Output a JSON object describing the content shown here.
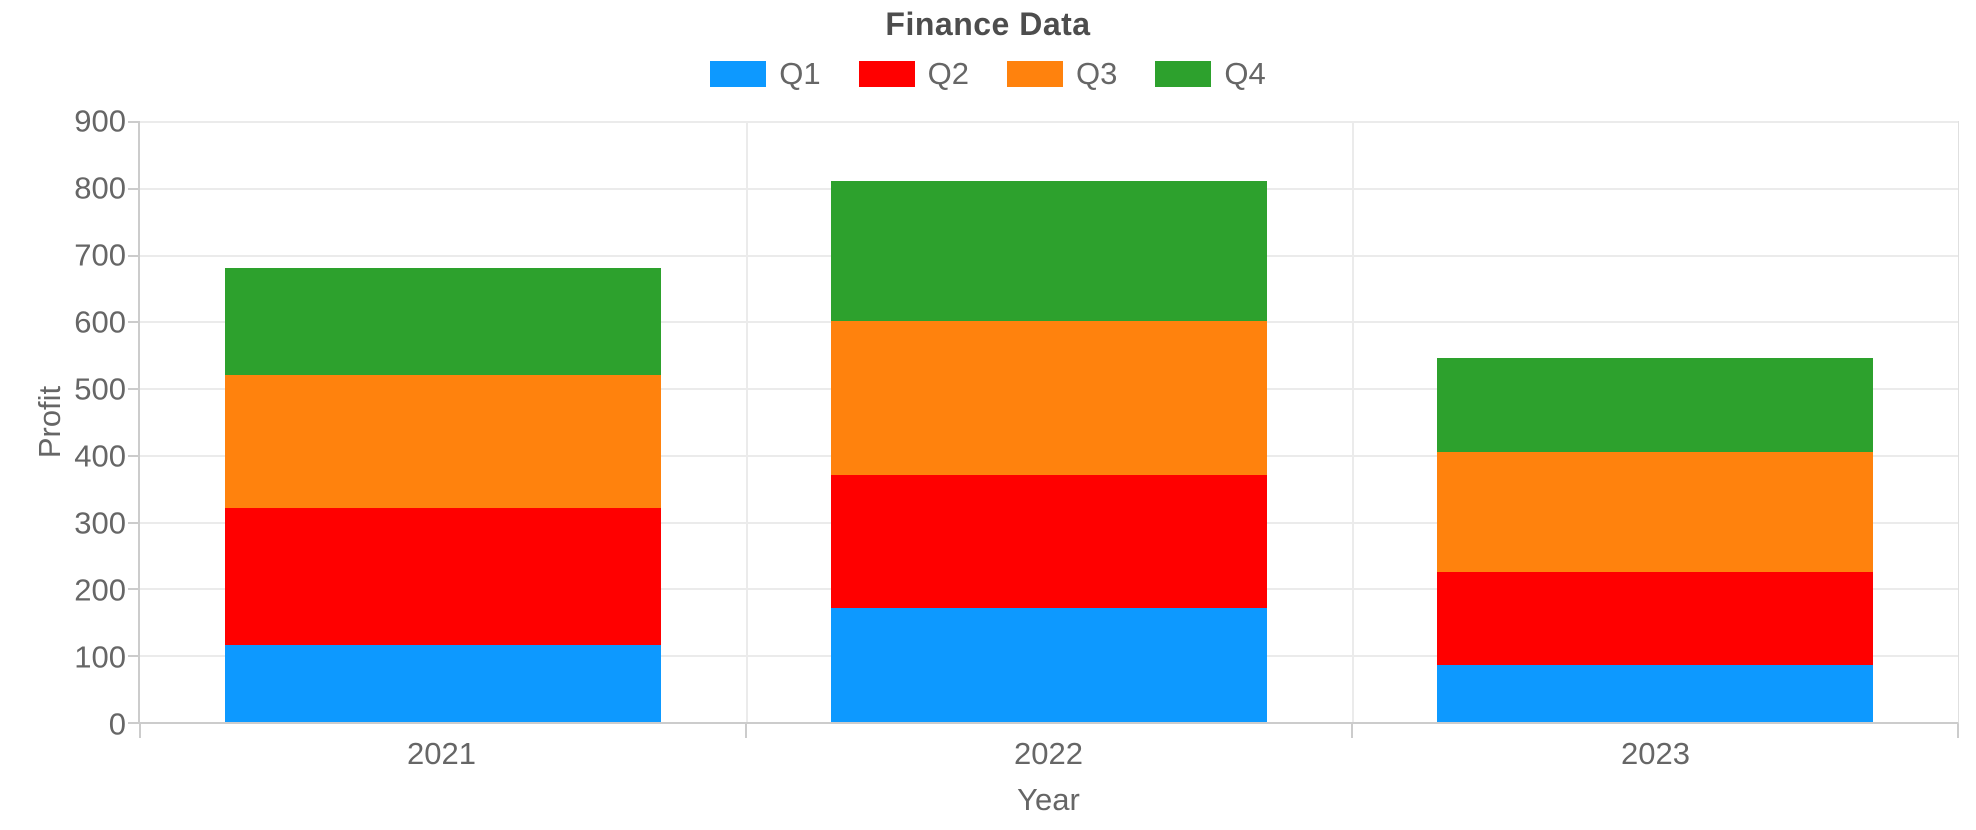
{
  "title": "Finance Data",
  "colors": {
    "q1_blue": "#0d99ff",
    "q2_red": "#ff0000",
    "q3_orange": "#ff820d",
    "q4_green": "#2da12d",
    "grid": "#ebebeb",
    "axis": "#cccccc",
    "text": "#666666",
    "title_text": "#4d4d4d"
  },
  "chart_data": {
    "type": "bar",
    "stacked": true,
    "title": "Finance Data",
    "xlabel": "Year",
    "ylabel": "Profit",
    "categories": [
      "2021",
      "2022",
      "2023"
    ],
    "series": [
      {
        "name": "Q1",
        "color": "#0d99ff",
        "values": [
          115,
          170,
          85
        ]
      },
      {
        "name": "Q2",
        "color": "#ff0000",
        "values": [
          205,
          200,
          140
        ]
      },
      {
        "name": "Q3",
        "color": "#ff820d",
        "values": [
          200,
          230,
          180
        ]
      },
      {
        "name": "Q4",
        "color": "#2da12d",
        "values": [
          160,
          210,
          140
        ]
      }
    ],
    "stack_totals": [
      680,
      810,
      545
    ],
    "cumulative_boundaries": {
      "2021": [
        115,
        320,
        520,
        680
      ],
      "2022": [
        170,
        370,
        600,
        810
      ],
      "2023": [
        85,
        225,
        405,
        545
      ]
    },
    "ylim": [
      0,
      900
    ],
    "ytick_step": 100,
    "grid": true,
    "legend_position": "top"
  }
}
